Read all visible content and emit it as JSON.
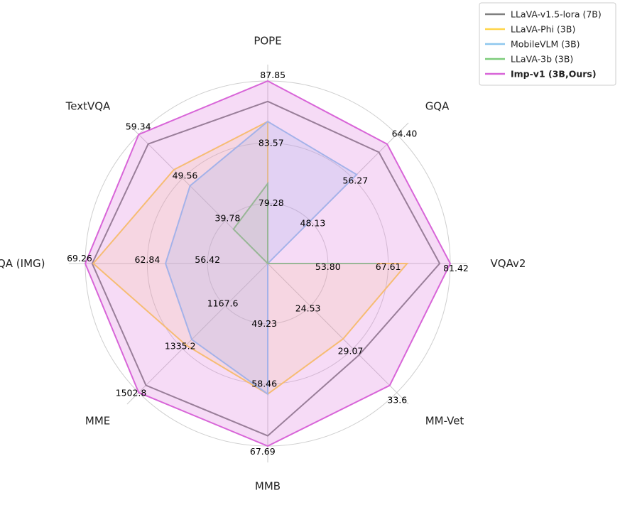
{
  "chart_data": {
    "type": "radar",
    "axes": [
      "POPE",
      "GQA",
      "VQAv2",
      "MM-Vet",
      "MMB",
      "MME",
      "SQA (IMG)",
      "TextVQA"
    ],
    "ring_labels": [
      [
        "79.28",
        "83.57",
        "87.85"
      ],
      [
        "48.13",
        "56.27",
        "64.40"
      ],
      [
        "53.80",
        "67.61",
        "81.42"
      ],
      [
        "24.53",
        "29.07",
        "33.6"
      ],
      [
        "49.23",
        "58.46",
        "67.69"
      ],
      [
        "1167.6",
        "1335.2",
        "1502.8"
      ],
      [
        "56.42",
        "62.84",
        "69.26"
      ],
      [
        "39.78",
        "49.56",
        "59.34"
      ]
    ],
    "radial_range": [
      0,
      1
    ],
    "series": [
      {
        "name": "LLaVA-v1.5-lora (7B)",
        "color": "#7f7f7f",
        "fill": "#7f7f7f",
        "fill_opacity": 0.0,
        "bold": false,
        "values": [
          0.888,
          0.862,
          0.942,
          0.708,
          0.944,
          0.944,
          0.962,
          0.926
        ]
      },
      {
        "name": "LLaVA-Phi (3B)",
        "color": "#ffd54a",
        "fill": "#ffd54a",
        "fill_opacity": 0.15,
        "bold": false,
        "values": [
          0.778,
          0.0,
          0.764,
          0.584,
          0.715,
          0.633,
          0.956,
          0.727
        ]
      },
      {
        "name": "MobileVLM (3B)",
        "color": "#8ec7ee",
        "fill": "#8ec7ee",
        "fill_opacity": 0.25,
        "bold": false,
        "values": [
          0.778,
          0.689,
          0.0,
          0.0,
          0.715,
          0.589,
          0.56,
          0.602
        ]
      },
      {
        "name": "LLaVA-3b (3B)",
        "color": "#7dcc7a",
        "fill": "#7dcc7a",
        "fill_opacity": 0.12,
        "bold": false,
        "values": [
          0.438,
          0.0,
          0.598,
          0.0,
          0.0,
          0.0,
          0.0,
          0.266
        ]
      },
      {
        "name": "Imp-v1 (3B,Ours)",
        "color": "#d865d8",
        "fill": "#e07de0",
        "fill_opacity": 0.28,
        "bold": true,
        "values": [
          1.0,
          0.925,
          1.0,
          0.945,
          1.0,
          1.0,
          1.0,
          1.0
        ]
      }
    ],
    "legend_position": "top-right"
  }
}
